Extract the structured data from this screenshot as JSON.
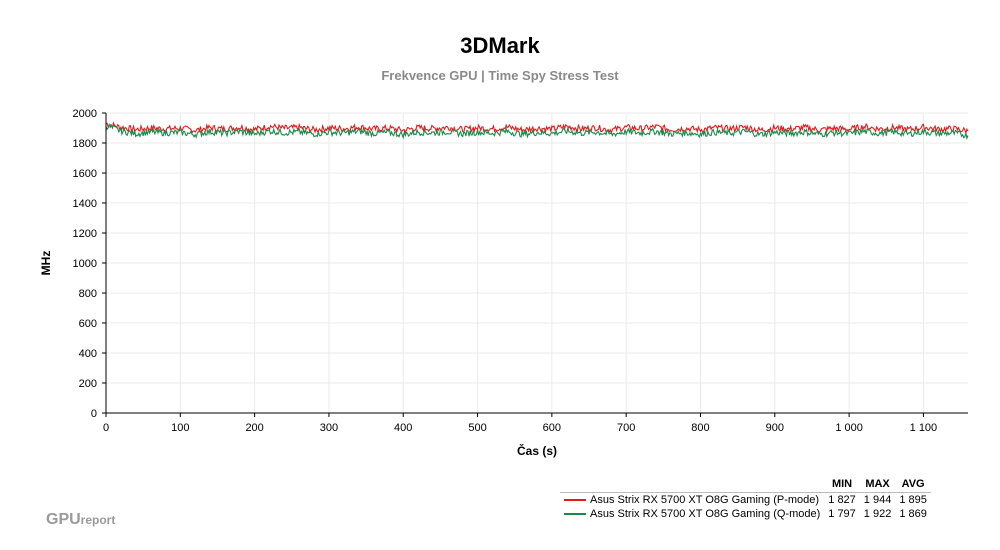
{
  "header": {
    "title": "3DMark",
    "subtitle": "Frekvence GPU | Time Spy Stress Test"
  },
  "logo": {
    "big": "GPU",
    "small": "report"
  },
  "legend": {
    "headers": [
      "MIN",
      "MAX",
      "AVG"
    ],
    "rows": [
      {
        "name": "Asus Strix RX 5700 XT O8G Gaming (P-mode)",
        "color": "#e31a1c",
        "min": "1 827",
        "max": "1 944",
        "avg": "1 895"
      },
      {
        "name": "Asus Strix RX 5700 XT O8G Gaming (Q-mode)",
        "color": "#1a8a4a",
        "min": "1 797",
        "max": "1 922",
        "avg": "1 869"
      }
    ]
  },
  "chart_data": {
    "type": "line",
    "title": "3DMark",
    "subtitle": "Frekvence GPU | Time Spy Stress Test",
    "xlabel": "Čas (s)",
    "ylabel": "MHz",
    "xlim": [
      0,
      1160
    ],
    "ylim": [
      0,
      2000
    ],
    "x_ticks": [
      0,
      100,
      200,
      300,
      400,
      500,
      600,
      700,
      800,
      900,
      1000,
      1100
    ],
    "x_tick_labels": [
      "0",
      "100",
      "200",
      "300",
      "400",
      "500",
      "600",
      "700",
      "800",
      "900",
      "1 000",
      "1 100"
    ],
    "y_ticks": [
      0,
      200,
      400,
      600,
      800,
      1000,
      1200,
      1400,
      1600,
      1800,
      2000
    ],
    "y_tick_labels": [
      "0",
      "200",
      "400",
      "600",
      "800",
      "1000",
      "1200",
      "1400",
      "1600",
      "1800",
      "2000"
    ],
    "grid": true,
    "legend_position": "bottom-right",
    "series": [
      {
        "name": "Asus Strix RX 5700 XT O8G Gaming (P-mode)",
        "color": "#e31a1c",
        "x": [
          0,
          20,
          40,
          60,
          80,
          100,
          120,
          140,
          160,
          180,
          200,
          220,
          240,
          260,
          280,
          300,
          320,
          340,
          360,
          380,
          400,
          420,
          440,
          460,
          480,
          500,
          520,
          540,
          560,
          580,
          600,
          620,
          640,
          660,
          680,
          700,
          720,
          740,
          760,
          780,
          800,
          820,
          840,
          860,
          880,
          900,
          920,
          940,
          960,
          980,
          1000,
          1020,
          1040,
          1060,
          1080,
          1100,
          1120,
          1140,
          1160
        ],
        "values": [
          1930,
          1905,
          1890,
          1900,
          1895,
          1898,
          1885,
          1902,
          1893,
          1905,
          1890,
          1912,
          1898,
          1903,
          1888,
          1900,
          1896,
          1907,
          1894,
          1899,
          1885,
          1902,
          1897,
          1905,
          1890,
          1901,
          1894,
          1906,
          1888,
          1899,
          1893,
          1910,
          1895,
          1902,
          1887,
          1904,
          1896,
          1908,
          1890,
          1897,
          1889,
          1901,
          1895,
          1906,
          1886,
          1900,
          1893,
          1903,
          1888,
          1898,
          1891,
          1909,
          1894,
          1902,
          1890,
          1905,
          1892,
          1896,
          1880
        ]
      },
      {
        "name": "Asus Strix RX 5700 XT O8G Gaming (Q-mode)",
        "color": "#1a8a4a",
        "x": [
          0,
          20,
          40,
          60,
          80,
          100,
          120,
          140,
          160,
          180,
          200,
          220,
          240,
          260,
          280,
          300,
          320,
          340,
          360,
          380,
          400,
          420,
          440,
          460,
          480,
          500,
          520,
          540,
          560,
          580,
          600,
          620,
          640,
          660,
          680,
          700,
          720,
          740,
          760,
          780,
          800,
          820,
          840,
          860,
          880,
          900,
          920,
          940,
          960,
          980,
          1000,
          1020,
          1040,
          1060,
          1080,
          1100,
          1120,
          1140,
          1160
        ],
        "values": [
          1915,
          1880,
          1862,
          1873,
          1868,
          1870,
          1858,
          1875,
          1866,
          1877,
          1860,
          1880,
          1869,
          1874,
          1860,
          1872,
          1867,
          1878,
          1864,
          1870,
          1856,
          1873,
          1868,
          1876,
          1861,
          1872,
          1865,
          1877,
          1859,
          1870,
          1864,
          1879,
          1866,
          1873,
          1858,
          1875,
          1867,
          1878,
          1861,
          1868,
          1860,
          1872,
          1866,
          1876,
          1857,
          1871,
          1864,
          1874,
          1859,
          1869,
          1862,
          1877,
          1865,
          1873,
          1861,
          1876,
          1863,
          1867,
          1850
        ]
      }
    ]
  }
}
